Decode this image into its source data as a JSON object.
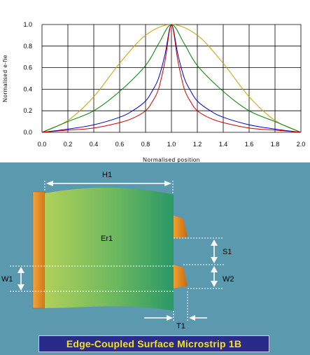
{
  "chart_data": {
    "type": "line",
    "xlabel": "Normalised position",
    "ylabel": "Normalised e-fie",
    "xlim": [
      0,
      2
    ],
    "ylim": [
      0,
      1
    ],
    "xticks": [
      "0.0",
      "0.2",
      "0.4",
      "0.6",
      "0.8",
      "1.0",
      "1.2",
      "1.4",
      "1.6",
      "1.8",
      "2.0"
    ],
    "yticks": [
      "0.0",
      "0.2",
      "0.4",
      "0.6",
      "0.8",
      "1.0"
    ],
    "grid": true,
    "series": [
      {
        "color": "#c8a000",
        "x": [
          0,
          0.2,
          0.4,
          0.6,
          0.8,
          1.0,
          1.2,
          1.4,
          1.6,
          1.8,
          2.0
        ],
        "y": [
          0,
          0.11,
          0.33,
          0.64,
          0.9,
          1.0,
          0.9,
          0.64,
          0.33,
          0.11,
          0
        ]
      },
      {
        "color": "#008000",
        "x": [
          0,
          0.2,
          0.4,
          0.6,
          0.8,
          0.9,
          1.0,
          1.1,
          1.2,
          1.4,
          1.6,
          1.8,
          2.0
        ],
        "y": [
          0,
          0.1,
          0.2,
          0.38,
          0.62,
          0.82,
          1.0,
          0.82,
          0.62,
          0.38,
          0.2,
          0.1,
          0
        ]
      },
      {
        "color": "#0000c8",
        "x": [
          0,
          0.2,
          0.4,
          0.6,
          0.7,
          0.8,
          0.85,
          0.9,
          0.95,
          1.0,
          1.05,
          1.1,
          1.15,
          1.2,
          1.3,
          1.4,
          1.6,
          1.8,
          2.0
        ],
        "y": [
          0,
          0.03,
          0.07,
          0.14,
          0.2,
          0.29,
          0.38,
          0.5,
          0.72,
          1.0,
          0.72,
          0.5,
          0.38,
          0.29,
          0.2,
          0.14,
          0.07,
          0.03,
          0
        ]
      },
      {
        "color": "#d00000",
        "x": [
          0,
          0.2,
          0.4,
          0.6,
          0.7,
          0.8,
          0.85,
          0.9,
          0.95,
          1.0,
          1.05,
          1.1,
          1.15,
          1.2,
          1.3,
          1.4,
          1.6,
          1.8,
          2.0
        ],
        "y": [
          0,
          0.02,
          0.04,
          0.09,
          0.13,
          0.2,
          0.28,
          0.4,
          0.66,
          1.0,
          0.66,
          0.4,
          0.28,
          0.2,
          0.13,
          0.09,
          0.04,
          0.02,
          0
        ]
      }
    ]
  },
  "diagram": {
    "labels": {
      "h1": "H1",
      "er1": "Er1",
      "s1": "S1",
      "w1": "W1",
      "w2": "W2",
      "t1": "T1"
    },
    "colors": {
      "background": "#5b99ae",
      "conductor": "#e08a1c",
      "substrate_left": "#a8cc50",
      "substrate_right": "#2f9a6a"
    },
    "title": "Edge-Coupled Surface Microstrip 1B"
  }
}
